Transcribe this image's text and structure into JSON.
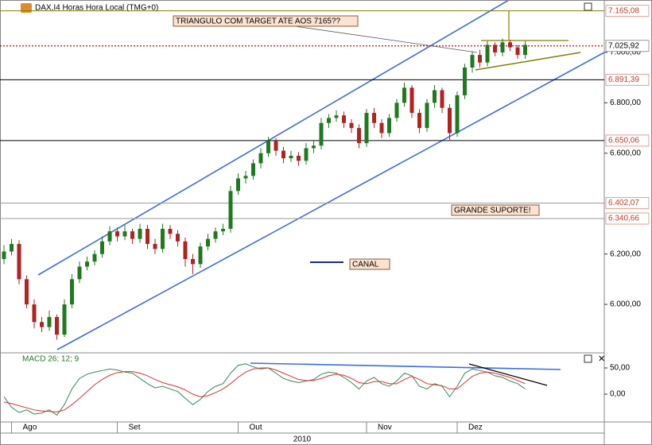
{
  "chart_data": [
    {
      "type": "candlestick",
      "title": "DAX,I4 Horas Hora Local (TMG+0)",
      "categories": [
        null,
        "Ago",
        null,
        null,
        null,
        null,
        null,
        null,
        null,
        null,
        null,
        null,
        null,
        null,
        null,
        "Set",
        null,
        null,
        null,
        null,
        null,
        null,
        null,
        null,
        null,
        null,
        null,
        null,
        null,
        null,
        null,
        "Out",
        null,
        null,
        null,
        null,
        null,
        null,
        null,
        null,
        null,
        null,
        null,
        null,
        null,
        null,
        null,
        null,
        "Nov",
        null,
        null,
        null,
        null,
        null,
        null,
        null,
        null,
        null,
        null,
        null,
        "Dez",
        null,
        null,
        null,
        null,
        null,
        null,
        null,
        null,
        null
      ],
      "year_label": "2010",
      "open": [
        6180,
        6210,
        6240,
        6100,
        6000,
        5930,
        5910,
        5950,
        5880,
        6000,
        6100,
        6150,
        6170,
        6200,
        6250,
        6290,
        6270,
        6290,
        6260,
        6300,
        6240,
        6220,
        6300,
        6280,
        6250,
        6180,
        6160,
        6230,
        6260,
        6290,
        6300,
        6450,
        6500,
        6510,
        6560,
        6600,
        6650,
        6610,
        6580,
        6590,
        6570,
        6620,
        6630,
        6720,
        6740,
        6750,
        6720,
        6700,
        6640,
        6760,
        6720,
        6680,
        6740,
        6800,
        6860,
        6760,
        6700,
        6800,
        6850,
        6780,
        6680,
        6830,
        6940,
        6990,
        6960,
        7030,
        7000,
        7040,
        7020,
        6990
      ],
      "high": [
        6235,
        6260,
        6255,
        6115,
        6020,
        5950,
        5975,
        5960,
        6020,
        6120,
        6170,
        6190,
        6215,
        6270,
        6310,
        6305,
        6315,
        6300,
        6320,
        6315,
        6260,
        6320,
        6315,
        6295,
        6265,
        6200,
        6245,
        6280,
        6305,
        6320,
        6470,
        6520,
        6530,
        6575,
        6620,
        6665,
        6660,
        6625,
        6610,
        6605,
        6640,
        6650,
        6740,
        6755,
        6770,
        6765,
        6735,
        6715,
        6775,
        6780,
        6735,
        6755,
        6815,
        6880,
        6870,
        6775,
        6815,
        6870,
        6860,
        6795,
        6845,
        6955,
        7005,
        7010,
        7045,
        7040,
        7055,
        7050,
        7030,
        7045
      ],
      "low": [
        6160,
        6195,
        6080,
        5985,
        5905,
        5890,
        5895,
        5860,
        5870,
        5985,
        6085,
        6135,
        6155,
        6185,
        6235,
        6250,
        6255,
        6240,
        6245,
        6220,
        6200,
        6205,
        6260,
        6230,
        6150,
        6120,
        6145,
        6215,
        6245,
        6275,
        6285,
        6435,
        6480,
        6495,
        6540,
        6585,
        6590,
        6560,
        6565,
        6550,
        6555,
        6600,
        6615,
        6700,
        6725,
        6700,
        6680,
        6620,
        6625,
        6700,
        6660,
        6665,
        6725,
        6785,
        6740,
        6680,
        6685,
        6780,
        6760,
        6650,
        6665,
        6815,
        6920,
        6940,
        6945,
        6985,
        6985,
        7005,
        6975,
        6975
      ],
      "close": [
        6210,
        6240,
        6100,
        6000,
        5930,
        5910,
        5950,
        5880,
        6000,
        6100,
        6150,
        6170,
        6200,
        6250,
        6290,
        6270,
        6290,
        6260,
        6300,
        6240,
        6220,
        6300,
        6280,
        6250,
        6180,
        6160,
        6230,
        6260,
        6290,
        6300,
        6450,
        6500,
        6510,
        6560,
        6600,
        6650,
        6610,
        6580,
        6590,
        6570,
        6620,
        6630,
        6720,
        6740,
        6750,
        6720,
        6700,
        6640,
        6760,
        6720,
        6680,
        6740,
        6800,
        6860,
        6760,
        6700,
        6800,
        6850,
        6780,
        6680,
        6830,
        6940,
        6990,
        6960,
        7030,
        7000,
        7040,
        7020,
        6990,
        7030
      ],
      "up_color": "#1f7a1f",
      "down_color": "#b22222",
      "ylim": [
        5811,
        7208
      ],
      "yticks": [
        {
          "value": 7000,
          "label": "7.000,00"
        },
        {
          "value": 6800,
          "label": "6.800,00"
        },
        {
          "value": 6600,
          "label": "6.600,00"
        },
        {
          "value": 6200,
          "label": "6.200,00"
        },
        {
          "value": 6000,
          "label": "6.000,00"
        }
      ],
      "levels": [
        {
          "value": 7165.08,
          "label": "7.165,08",
          "color": "#808000",
          "style": "solid"
        },
        {
          "value": 7025.92,
          "label": "7.025,92",
          "color": "#cc0000",
          "style": "dotted"
        },
        {
          "value": 6891.39,
          "label": "6.891,39",
          "color": "#000000",
          "style": "solid"
        },
        {
          "value": 6650.06,
          "label": "6.650,06",
          "color": "#000000",
          "style": "solid"
        },
        {
          "value": 6402.07,
          "label": "6.402,07",
          "color": "#999999",
          "style": "solid"
        },
        {
          "value": 6340.66,
          "label": "6.340,66",
          "color": "#999999",
          "style": "solid"
        }
      ],
      "annotations": [
        "TRIANGULO COM TARGET ATE AOS 7165??",
        "GRANDE SUPORTE!",
        "CANAL"
      ]
    },
    {
      "type": "line",
      "title": "MACD 26; 12; 9",
      "series": [
        {
          "color": "#2e8b57",
          "values": [
            -5,
            -25,
            -35,
            -30,
            -38,
            -36,
            -30,
            -40,
            -20,
            10,
            30,
            38,
            42,
            45,
            48,
            46,
            42,
            40,
            30,
            20,
            12,
            15,
            10,
            5,
            -8,
            -20,
            -10,
            5,
            15,
            20,
            40,
            55,
            58,
            52,
            48,
            50,
            40,
            30,
            25,
            22,
            25,
            28,
            38,
            42,
            40,
            32,
            22,
            10,
            25,
            32,
            20,
            15,
            25,
            40,
            35,
            15,
            10,
            20,
            15,
            -5,
            15,
            40,
            48,
            45,
            42,
            35,
            32,
            25,
            20,
            10
          ]
        },
        {
          "color": "#e03030",
          "values": [
            -15,
            -18,
            -22,
            -26,
            -30,
            -32,
            -33,
            -34,
            -30,
            -20,
            -8,
            5,
            18,
            28,
            36,
            41,
            43,
            43,
            40,
            35,
            28,
            22,
            18,
            14,
            8,
            0,
            -5,
            -3,
            3,
            10,
            20,
            32,
            42,
            48,
            50,
            50,
            46,
            40,
            34,
            28,
            26,
            26,
            30,
            35,
            38,
            36,
            30,
            22,
            20,
            24,
            24,
            20,
            20,
            28,
            34,
            28,
            20,
            18,
            16,
            10,
            10,
            22,
            34,
            40,
            42,
            40,
            36,
            32,
            26,
            20
          ]
        }
      ],
      "ylim": [
        -51.5,
        77.3
      ],
      "yticks": [
        {
          "value": 50,
          "label": "50,00"
        },
        {
          "value": 0,
          "label": "0,00"
        }
      ]
    }
  ]
}
